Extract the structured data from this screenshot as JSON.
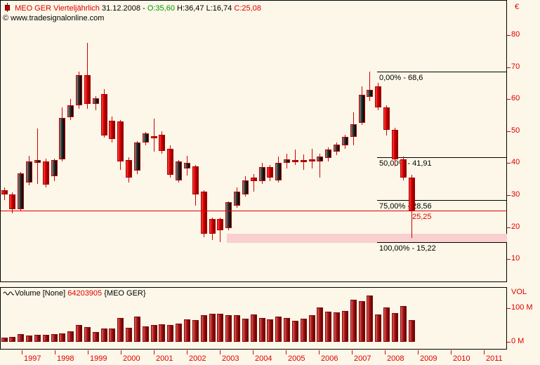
{
  "header": {
    "symbol_title": "MEO GER Vierteljährlich",
    "date": "31.12.2008 -",
    "open": "O:35,60",
    "high_low": "H:36,47 L:16,74",
    "close": "C:25,08",
    "copyright": "© www.tradesignalonline.com"
  },
  "y_axis": {
    "currency": "€",
    "ticks": [
      80,
      70,
      60,
      50,
      40,
      30,
      20,
      10
    ]
  },
  "x_axis": {
    "years": [
      "1997",
      "1998",
      "1999",
      "2000",
      "2001",
      "2002",
      "2003",
      "2004",
      "2005",
      "2006",
      "2007",
      "2008",
      "2009",
      "2010",
      "2011"
    ]
  },
  "volume_pane": {
    "wave_icon": "volume-wave-icon",
    "indicator_label": "Volume [None] ",
    "value": "64203905",
    "instrument": " {MEO GER}",
    "axis_title": "VOL",
    "ticks": [
      {
        "label": "100 M",
        "value": 100
      },
      {
        "label": "0 M",
        "value": 0
      }
    ]
  },
  "colors": {
    "background": "#FCF7E8",
    "axis_text": "#DD0000",
    "open_value": "#009900",
    "close_value": "#DD0000",
    "up_candle": "#2b2b2b",
    "down_candle": "#DD0000",
    "support_band": "#F9CFCF",
    "fib_line": "#000000",
    "price_line": "#DD0000"
  },
  "chart_data": {
    "type": "candlestick+volume",
    "title": "MEO GER Vierteljährlich (quarterly candles, EUR)",
    "ylim": [
      5,
      85
    ],
    "volume_ylim_millions": [
      0,
      100
    ],
    "grid": false,
    "fib_levels": [
      {
        "label": "0,00% - 68,6",
        "price": 68.6
      },
      {
        "label": "50,00% - 41,91",
        "price": 41.91
      },
      {
        "label": "75,00% - 28,56",
        "price": 28.56
      },
      {
        "label": "100,00% - 15,22",
        "price": 15.22
      }
    ],
    "price_line": {
      "label": "25,25",
      "price": 25.25
    },
    "support_band": {
      "price_top": 17.9,
      "price_bottom": 15.1
    },
    "x": [
      "1996Q3",
      "1996Q4",
      "1997Q1",
      "1997Q2",
      "1997Q3",
      "1997Q4",
      "1998Q1",
      "1998Q2",
      "1998Q3",
      "1998Q4",
      "1999Q1",
      "1999Q2",
      "1999Q3",
      "1999Q4",
      "2000Q1",
      "2000Q2",
      "2000Q3",
      "2000Q4",
      "2001Q1",
      "2001Q2",
      "2001Q3",
      "2001Q4",
      "2002Q1",
      "2002Q2",
      "2002Q3",
      "2002Q4",
      "2003Q1",
      "2003Q2",
      "2003Q3",
      "2003Q4",
      "2004Q1",
      "2004Q2",
      "2004Q3",
      "2004Q4",
      "2005Q1",
      "2005Q2",
      "2005Q3",
      "2005Q4",
      "2006Q1",
      "2006Q2",
      "2006Q3",
      "2006Q4",
      "2007Q1",
      "2007Q2",
      "2007Q3",
      "2007Q4",
      "2008Q1",
      "2008Q2",
      "2008Q3",
      "2008Q4"
    ],
    "candles_ohlc": [
      [
        31.5,
        32.5,
        28.5,
        30.2
      ],
      [
        30.2,
        30.8,
        24.4,
        25.6
      ],
      [
        25.6,
        37.3,
        25.0,
        36.8
      ],
      [
        33.9,
        42.4,
        33.0,
        40.5
      ],
      [
        40.1,
        50.8,
        33.5,
        41.0
      ],
      [
        40.5,
        41.5,
        32.5,
        33.2
      ],
      [
        36.0,
        41.5,
        34.5,
        41.0
      ],
      [
        41.2,
        57.4,
        40.5,
        54.1
      ],
      [
        54.4,
        60.0,
        53.5,
        58.0
      ],
      [
        58.0,
        68.5,
        57.0,
        67.5
      ],
      [
        67.5,
        77.5,
        57.0,
        58.5
      ],
      [
        58.5,
        61.0,
        56.5,
        60.3
      ],
      [
        61.6,
        63.1,
        48.0,
        48.6
      ],
      [
        53.3,
        54.5,
        46.5,
        47.6
      ],
      [
        53.0,
        53.5,
        38.0,
        40.5
      ],
      [
        41.0,
        41.8,
        34.0,
        35.5
      ],
      [
        37.7,
        47.0,
        36.5,
        46.5
      ],
      [
        46.5,
        49.8,
        45.5,
        49.3
      ],
      [
        48.4,
        54.0,
        43.5,
        47.8
      ],
      [
        48.9,
        50.0,
        43.0,
        43.8
      ],
      [
        44.5,
        45.6,
        35.5,
        36.4
      ],
      [
        34.6,
        41.0,
        34.0,
        40.5
      ],
      [
        38.4,
        42.3,
        36.2,
        40.1
      ],
      [
        39.0,
        39.5,
        26.7,
        30.2
      ],
      [
        31.1,
        31.5,
        16.9,
        18.0
      ],
      [
        22.6,
        23.0,
        16.0,
        18.0
      ],
      [
        22.6,
        23.0,
        15.22,
        19.1
      ],
      [
        19.7,
        28.0,
        19.0,
        27.8
      ],
      [
        26.7,
        32.5,
        26.0,
        31.1
      ],
      [
        30.2,
        36.0,
        29.5,
        34.6
      ],
      [
        35.5,
        36.6,
        31.1,
        34.4
      ],
      [
        34.4,
        40.0,
        33.5,
        38.8
      ],
      [
        38.8,
        39.5,
        34.5,
        35.5
      ],
      [
        34.6,
        42.0,
        34.0,
        40.1
      ],
      [
        40.1,
        43.0,
        38.4,
        41.2
      ],
      [
        41.0,
        44.3,
        39.5,
        40.3
      ],
      [
        41.0,
        42.7,
        37.9,
        40.3
      ],
      [
        41.2,
        44.5,
        38.4,
        40.5
      ],
      [
        40.5,
        43.0,
        35.5,
        42.1
      ],
      [
        41.6,
        45.0,
        40.5,
        44.3
      ],
      [
        43.6,
        46.5,
        42.5,
        45.8
      ],
      [
        45.6,
        48.8,
        44.5,
        48.2
      ],
      [
        48.2,
        55.9,
        45.6,
        52.2
      ],
      [
        52.6,
        64.0,
        52.0,
        61.4
      ],
      [
        60.7,
        68.6,
        59.5,
        62.9
      ],
      [
        63.9,
        65.1,
        56.5,
        57.4
      ],
      [
        57.4,
        58.0,
        48.7,
        50.4
      ],
      [
        50.4,
        51.0,
        39.0,
        41.2
      ],
      [
        41.2,
        42.0,
        34.6,
        35.5
      ],
      [
        35.6,
        36.47,
        16.74,
        25.08
      ]
    ],
    "volumes_millions": [
      12,
      14,
      23,
      19,
      21,
      20,
      23,
      25,
      32,
      50,
      44,
      28,
      39,
      40,
      70,
      41,
      74,
      45,
      49,
      52,
      49,
      54,
      66,
      65,
      79,
      83,
      83,
      78,
      79,
      68,
      81,
      71,
      67,
      74,
      70,
      62,
      69,
      79,
      102,
      88,
      86,
      91,
      123,
      119,
      136,
      80,
      102,
      84,
      105,
      64.2
    ]
  }
}
